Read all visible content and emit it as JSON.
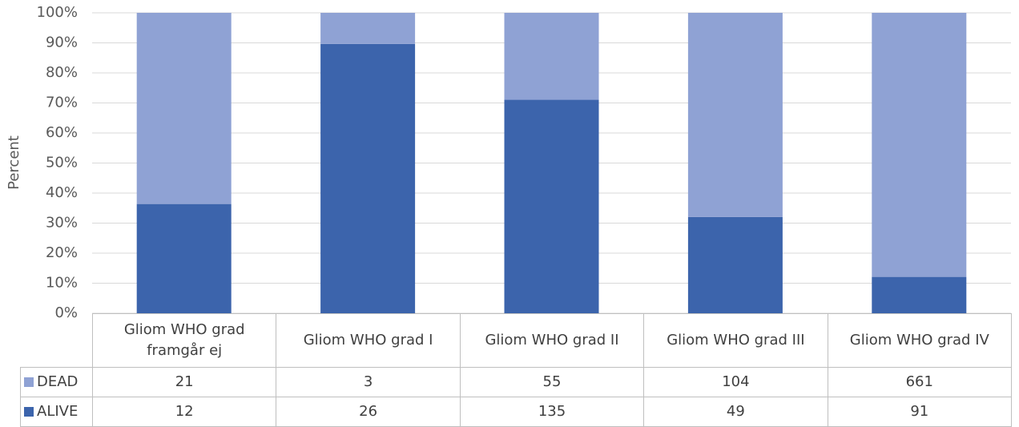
{
  "chart_data": {
    "type": "bar",
    "stacking": "percent",
    "y_label": "Percent",
    "categories": [
      "Gliom WHO grad framgår ej",
      "Gliom WHO grad I",
      "Gliom WHO grad II",
      "Gliom WHO grad III",
      "Gliom WHO grad IV"
    ],
    "series": [
      {
        "name": "DEAD",
        "color": "#8fa2d4",
        "values": [
          21,
          3,
          55,
          104,
          661
        ]
      },
      {
        "name": "ALIVE",
        "color": "#3c64ac",
        "values": [
          12,
          26,
          135,
          49,
          91
        ]
      }
    ],
    "ylim": [
      0,
      100
    ],
    "yticks": [
      {
        "value": 0,
        "label": "0%"
      },
      {
        "value": 10,
        "label": "10%"
      },
      {
        "value": 20,
        "label": "20%"
      },
      {
        "value": 30,
        "label": "30%"
      },
      {
        "value": 40,
        "label": "40%"
      },
      {
        "value": 50,
        "label": "50%"
      },
      {
        "value": 60,
        "label": "60%"
      },
      {
        "value": 70,
        "label": "70%"
      },
      {
        "value": 80,
        "label": "80%"
      },
      {
        "value": 90,
        "label": "90%"
      },
      {
        "value": 100,
        "label": "100%"
      }
    ],
    "grid": true,
    "data_table": true
  }
}
